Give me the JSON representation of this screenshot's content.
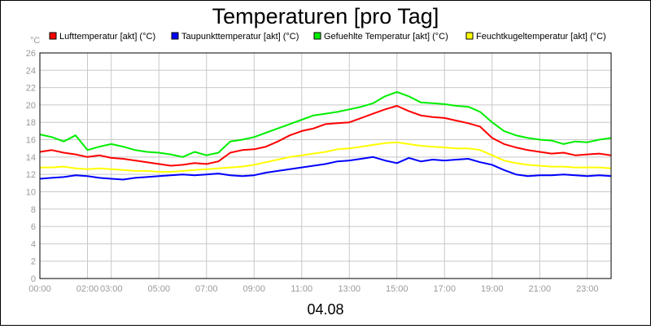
{
  "chart_data": {
    "type": "line",
    "title": "Temperaturen [pro Tag]",
    "ylabel": "°C",
    "xlabel": "04.08",
    "ylim": [
      0,
      26
    ],
    "y_ticks": [
      0,
      2,
      4,
      6,
      8,
      10,
      12,
      14,
      16,
      18,
      20,
      22,
      24,
      26
    ],
    "xlim": [
      0,
      24
    ],
    "x_ticks": [
      {
        "hour": 0,
        "label": "00:00"
      },
      {
        "hour": 2,
        "label": "02:00"
      },
      {
        "hour": 3,
        "label": "03:00"
      },
      {
        "hour": 5,
        "label": "05:00"
      },
      {
        "hour": 7,
        "label": "07:00"
      },
      {
        "hour": 9,
        "label": "09:00"
      },
      {
        "hour": 11,
        "label": "11:00"
      },
      {
        "hour": 13,
        "label": "13:00"
      },
      {
        "hour": 15,
        "label": "15:00"
      },
      {
        "hour": 17,
        "label": "17:00"
      },
      {
        "hour": 19,
        "label": "19:00"
      },
      {
        "hour": 21,
        "label": "21:00"
      },
      {
        "hour": 23,
        "label": "23:00"
      }
    ],
    "grid": true,
    "legend_position": "top",
    "x": [
      0,
      0.5,
      1,
      1.5,
      2,
      2.5,
      3,
      3.5,
      4,
      4.5,
      5,
      5.5,
      6,
      6.5,
      7,
      7.5,
      8,
      8.5,
      9,
      9.5,
      10,
      10.5,
      11,
      11.5,
      12,
      12.5,
      13,
      13.5,
      14,
      14.5,
      15,
      15.5,
      16,
      16.5,
      17,
      17.5,
      18,
      18.5,
      19,
      19.5,
      20,
      20.5,
      21,
      21.5,
      22,
      22.5,
      23,
      23.5,
      24
    ],
    "series": [
      {
        "name": "Lufttemperatur [akt] (°C)",
        "color": "#ff0000",
        "values": [
          14.6,
          14.8,
          14.5,
          14.3,
          14.0,
          14.2,
          13.9,
          13.8,
          13.6,
          13.4,
          13.2,
          13.0,
          13.1,
          13.3,
          13.2,
          13.5,
          14.5,
          14.8,
          14.9,
          15.2,
          15.8,
          16.5,
          17.0,
          17.3,
          17.8,
          17.9,
          18.0,
          18.5,
          19.0,
          19.5,
          19.9,
          19.3,
          18.8,
          18.6,
          18.5,
          18.2,
          17.9,
          17.5,
          16.2,
          15.5,
          15.1,
          14.8,
          14.6,
          14.4,
          14.5,
          14.2,
          14.3,
          14.4,
          14.2
        ]
      },
      {
        "name": "Taupunkttemperatur [akt] (°C)",
        "color": "#0000ff",
        "values": [
          11.5,
          11.6,
          11.7,
          11.9,
          11.8,
          11.6,
          11.5,
          11.4,
          11.6,
          11.7,
          11.8,
          11.9,
          12.0,
          11.9,
          12.0,
          12.1,
          11.9,
          11.8,
          11.9,
          12.2,
          12.4,
          12.6,
          12.8,
          13.0,
          13.2,
          13.5,
          13.6,
          13.8,
          14.0,
          13.6,
          13.3,
          13.9,
          13.5,
          13.7,
          13.6,
          13.7,
          13.8,
          13.4,
          13.1,
          12.5,
          12.0,
          11.8,
          11.9,
          11.9,
          12.0,
          11.9,
          11.8,
          11.9,
          11.8
        ]
      },
      {
        "name": "Gefuehlte Temperatur [akt] (°C)",
        "color": "#00ee00",
        "values": [
          16.6,
          16.3,
          15.8,
          16.5,
          14.8,
          15.2,
          15.5,
          15.2,
          14.8,
          14.6,
          14.5,
          14.3,
          14.0,
          14.6,
          14.2,
          14.5,
          15.8,
          16.0,
          16.3,
          16.8,
          17.3,
          17.8,
          18.3,
          18.8,
          19.0,
          19.2,
          19.5,
          19.8,
          20.2,
          21.0,
          21.5,
          21.0,
          20.3,
          20.2,
          20.1,
          19.9,
          19.8,
          19.2,
          18.0,
          17.0,
          16.5,
          16.2,
          16.0,
          15.9,
          15.5,
          15.8,
          15.7,
          16.0,
          16.2
        ]
      },
      {
        "name": "Feuchtkugeltemperatur [akt] (°C)",
        "color": "#ffff00",
        "values": [
          12.8,
          12.8,
          12.9,
          12.7,
          12.6,
          12.7,
          12.6,
          12.5,
          12.4,
          12.4,
          12.3,
          12.3,
          12.4,
          12.5,
          12.6,
          12.7,
          12.8,
          12.9,
          13.1,
          13.4,
          13.7,
          14.0,
          14.2,
          14.4,
          14.6,
          14.9,
          15.0,
          15.2,
          15.4,
          15.6,
          15.7,
          15.5,
          15.3,
          15.2,
          15.1,
          15.0,
          15.0,
          14.8,
          14.2,
          13.6,
          13.3,
          13.1,
          13.0,
          12.9,
          12.9,
          12.8,
          12.8,
          12.8,
          12.7
        ]
      }
    ]
  }
}
